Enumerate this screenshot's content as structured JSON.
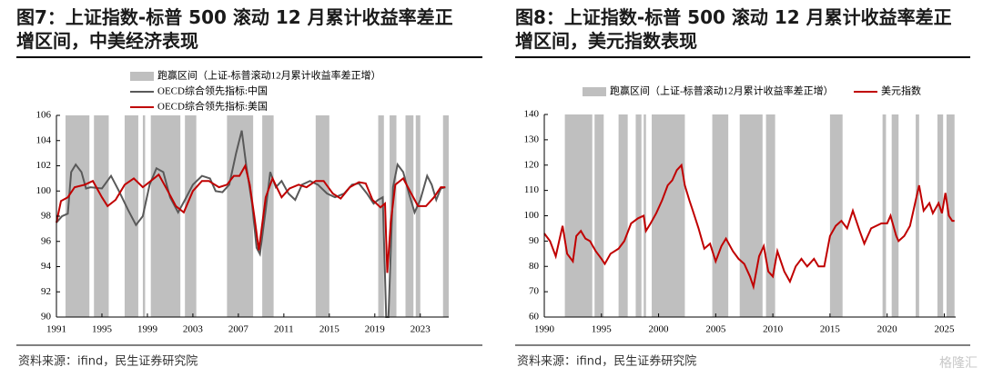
{
  "chart_data": [
    {
      "type": "line",
      "title": "图7：上证指数-标普 500 滚动 12 月累计收益率差正增区间，中美经济表现",
      "source": "资料来源：ifind，民生证券研究院",
      "bands": {
        "name": "跑赢区间（上证-标普滚动12月累计收益率差正增）",
        "color": "#bfbfbf",
        "ranges": [
          [
            1991.8,
            1993.9
          ],
          [
            1994.3,
            1995.6
          ],
          [
            1997,
            1998.2
          ],
          [
            1998.6,
            1998.8
          ],
          [
            1999.3,
            2001.9
          ],
          [
            2002.3,
            2003.3
          ],
          [
            2006,
            2008.3
          ],
          [
            2009.1,
            2010.1
          ],
          [
            2013.8,
            2015
          ],
          [
            2019.3,
            2019.8
          ],
          [
            2020.3,
            2020.9
          ],
          [
            2021.7,
            2022.4
          ],
          [
            2022.6,
            2023
          ],
          [
            2025,
            2025.5
          ]
        ]
      },
      "series": [
        {
          "name": "OECD综合领先指标:中国",
          "color": "#595959",
          "x": [
            1991,
            1991.5,
            1992,
            1992.3,
            1992.7,
            1993.2,
            1993.6,
            1994,
            1995,
            1995.8,
            1996.5,
            1997.3,
            1998,
            1998.6,
            1999.2,
            1999.8,
            2000.4,
            2001,
            2001.7,
            2002.3,
            2003,
            2003.8,
            2004.5,
            2005,
            2005.6,
            2006.2,
            2006.8,
            2007.3,
            2007.7,
            2008.2,
            2008.6,
            2008.9,
            2009.4,
            2009.8,
            2010.3,
            2010.8,
            2011.4,
            2012,
            2012.6,
            2013.3,
            2014,
            2014.8,
            2015.5,
            2016.3,
            2017,
            2017.6,
            2018.3,
            2018.9,
            2019.3,
            2019.7,
            2020,
            2020.2,
            2020.6,
            2021,
            2021.5,
            2022,
            2022.5,
            2023,
            2023.6,
            2024,
            2024.4,
            2024.8,
            2025.2
          ],
          "values": [
            97.5,
            98,
            98.2,
            101.5,
            102.1,
            101.5,
            100.2,
            100.3,
            100.2,
            101.2,
            100,
            98.5,
            97.3,
            98,
            100.5,
            101.8,
            101.5,
            99.5,
            98.3,
            99.3,
            100.5,
            101.2,
            101,
            100,
            99.9,
            100.5,
            103,
            104.8,
            102,
            99,
            95.5,
            95,
            98.5,
            101.5,
            100.3,
            100.8,
            99.8,
            99.3,
            100.5,
            100.8,
            100.5,
            99.8,
            99.5,
            99.8,
            100.5,
            100.6,
            99.8,
            99,
            99.3,
            99.5,
            90,
            90,
            100.3,
            102.1,
            101.5,
            99.8,
            98.3,
            99.3,
            101.2,
            100.5,
            99.3,
            100.2,
            100.3
          ]
        },
        {
          "name": "OECD综合领先指标:美国",
          "color": "#c00000",
          "x": [
            1991,
            1991.4,
            1992,
            1992.6,
            1993.5,
            1994.2,
            1995,
            1995.5,
            1996.2,
            1997,
            1997.8,
            1998.6,
            1999.3,
            2000,
            2000.8,
            2001.5,
            2002.2,
            2003,
            2003.8,
            2004.4,
            2005.3,
            2006,
            2006.6,
            2007.1,
            2007.6,
            2008,
            2008.4,
            2008.8,
            2009.4,
            2010,
            2010.8,
            2011.5,
            2012.3,
            2013,
            2013.8,
            2014.5,
            2015.3,
            2016,
            2016.8,
            2017.6,
            2018.2,
            2018.8,
            2019.5,
            2019.9,
            2020.1,
            2020.4,
            2020.8,
            2021.5,
            2022.2,
            2022.8,
            2023.5,
            2024.2,
            2024.8,
            2025.2
          ],
          "values": [
            97.5,
            99.2,
            99.5,
            100.3,
            100.5,
            100.8,
            99.5,
            98.8,
            99.3,
            100.5,
            101,
            100.3,
            100.8,
            101.3,
            100,
            98.8,
            98.3,
            100,
            100.8,
            100.8,
            100.3,
            100.5,
            101.2,
            101.2,
            102,
            100.5,
            98,
            95.3,
            99.5,
            101,
            99.5,
            100.2,
            100.5,
            100.3,
            100.8,
            100.8,
            99.8,
            99.4,
            100.3,
            100.7,
            100.6,
            99.3,
            98.7,
            99,
            93.5,
            97.5,
            100.5,
            101,
            99.8,
            98.8,
            98.8,
            99.5,
            100.3,
            100.3
          ]
        }
      ],
      "xlim": [
        1991,
        2025.5
      ],
      "xticks": [
        1991,
        1995,
        1999,
        2003,
        2007,
        2011,
        2015,
        2019,
        2023
      ],
      "ylim": [
        90,
        106
      ],
      "yticks": [
        90,
        92,
        94,
        96,
        98,
        100,
        102,
        104,
        106
      ]
    },
    {
      "type": "line",
      "title": "图8：上证指数-标普 500 滚动 12 月累计收益率差正增区间，美元指数表现",
      "source": "资料来源：ifind，民生证券研究院",
      "bands": {
        "name": "跑赢区间（上证-标普滚动12月累计收益率差正增）",
        "color": "#bfbfbf",
        "ranges": [
          [
            1991.8,
            1994.2
          ],
          [
            1994.4,
            1995.2
          ],
          [
            1996.5,
            1997.3
          ],
          [
            1998,
            1998.5
          ],
          [
            1998.7,
            1998.9
          ],
          [
            1999.4,
            2002.3
          ],
          [
            2004.7,
            2006.1
          ],
          [
            2007.1,
            2009.1
          ],
          [
            2009.4,
            2010.2
          ],
          [
            2015,
            2016.1
          ],
          [
            2019.6,
            2019.9
          ],
          [
            2020.4,
            2021
          ],
          [
            2022.5,
            2022.8
          ],
          [
            2024.4,
            2024.9
          ],
          [
            2025.2,
            2025.9
          ]
        ]
      },
      "series": [
        {
          "name": "美元指数",
          "color": "#c00000",
          "x": [
            1990,
            1990.5,
            1991,
            1991.3,
            1991.6,
            1992,
            1992.5,
            1992.8,
            1993.2,
            1993.6,
            1994,
            1994.5,
            1995,
            1995.3,
            1995.8,
            1996.5,
            1997,
            1997.6,
            1998.2,
            1998.7,
            1998.9,
            1999.3,
            1999.8,
            2000.3,
            2000.8,
            2001.2,
            2001.6,
            2002,
            2002.3,
            2002.7,
            2003,
            2003.5,
            2004,
            2004.5,
            2005,
            2005.5,
            2005.9,
            2006.5,
            2007,
            2007.5,
            2008,
            2008.3,
            2008.8,
            2009.2,
            2009.6,
            2010,
            2010.4,
            2011,
            2011.5,
            2012,
            2012.5,
            2013,
            2013.6,
            2014,
            2014.5,
            2015,
            2015.5,
            2016,
            2016.5,
            2017,
            2017.6,
            2018,
            2018.6,
            2019.5,
            2020,
            2020.3,
            2020.8,
            2021,
            2021.5,
            2022,
            2022.8,
            2023.2,
            2023.7,
            2024,
            2024.5,
            2024.8,
            2025.1,
            2025.4,
            2025.7,
            2025.9
          ],
          "values": [
            93,
            90,
            84,
            90,
            96,
            85,
            82,
            92,
            94,
            91,
            90,
            86,
            83,
            81,
            85,
            87,
            90,
            97,
            99,
            100,
            94,
            97,
            101,
            106,
            112,
            114,
            118,
            120,
            112,
            106,
            102,
            95,
            87,
            89,
            82,
            88,
            91,
            86,
            83,
            81,
            76,
            72,
            84,
            88,
            78,
            76,
            86,
            78,
            74,
            80,
            83,
            80,
            83,
            80,
            80,
            92,
            96,
            98,
            95,
            102,
            94,
            89,
            95,
            97,
            97,
            100,
            92,
            90,
            92,
            96,
            112,
            102,
            105,
            101,
            105,
            101,
            109,
            100,
            98,
            98
          ]
        }
      ],
      "xlim": [
        1990,
        2026
      ],
      "xticks": [
        1990,
        1995,
        2000,
        2005,
        2010,
        2015,
        2020,
        2025
      ],
      "ylim": [
        60,
        140
      ],
      "yticks": [
        60,
        70,
        80,
        90,
        100,
        110,
        120,
        130,
        140
      ]
    }
  ],
  "watermark": "格隆汇"
}
